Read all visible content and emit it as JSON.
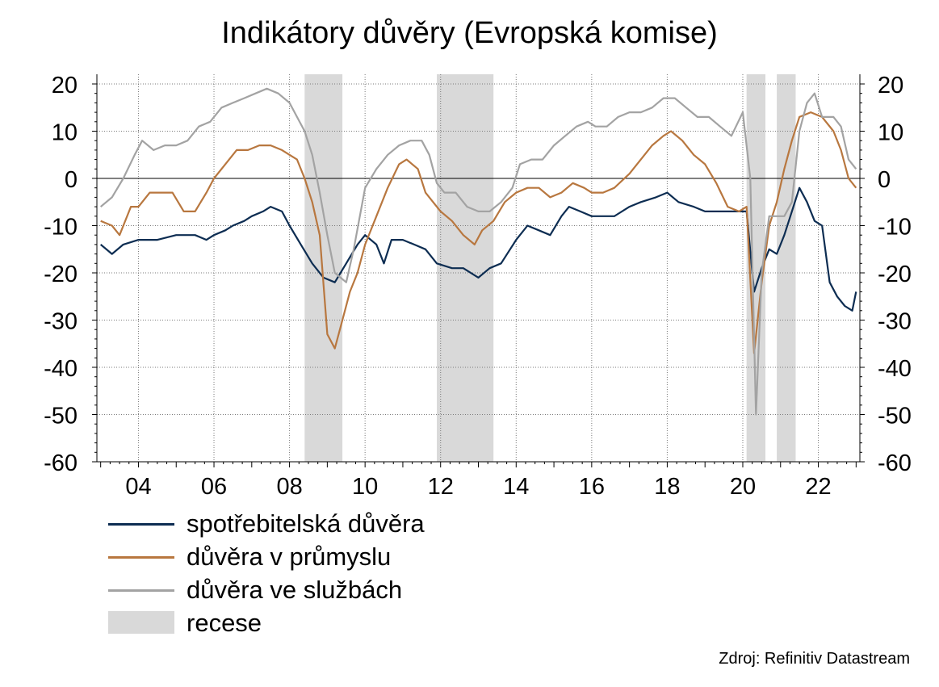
{
  "chart_data": {
    "type": "line",
    "title": "Indikátory důvěry (Evropská komise)",
    "source": "Zdroj: Refinitiv Datastream",
    "x_range": [
      2002.9,
      2023.1
    ],
    "ylim": [
      -60,
      20
    ],
    "y_ticks": [
      20,
      10,
      0,
      -10,
      -20,
      -30,
      -40,
      -50,
      -60
    ],
    "y_tick_labels": [
      "20",
      "10",
      "0",
      "-10",
      "-20",
      "-30",
      "-40",
      "-50",
      "-60"
    ],
    "x_ticks": [
      2004,
      2006,
      2008,
      2010,
      2012,
      2014,
      2016,
      2018,
      2020,
      2022
    ],
    "x_tick_labels": [
      "04",
      "06",
      "08",
      "10",
      "12",
      "14",
      "16",
      "18",
      "20",
      "22"
    ],
    "grid": true,
    "dual_y_axis": true,
    "legend_position": "bottom-left",
    "recessions": [
      [
        2008.4,
        2009.4
      ],
      [
        2011.9,
        2013.4
      ],
      [
        2020.1,
        2020.6
      ],
      [
        2020.9,
        2021.4
      ]
    ],
    "series": [
      {
        "name": "spotřebitelská důvěra",
        "color": "#0d2d52",
        "points": [
          [
            2003.0,
            -14
          ],
          [
            2003.3,
            -16
          ],
          [
            2003.6,
            -14
          ],
          [
            2004.0,
            -13
          ],
          [
            2004.5,
            -13
          ],
          [
            2005.0,
            -12
          ],
          [
            2005.5,
            -12
          ],
          [
            2005.8,
            -13
          ],
          [
            2006.0,
            -12
          ],
          [
            2006.3,
            -11
          ],
          [
            2006.5,
            -10
          ],
          [
            2006.8,
            -9
          ],
          [
            2007.0,
            -8
          ],
          [
            2007.3,
            -7
          ],
          [
            2007.5,
            -6
          ],
          [
            2007.8,
            -7
          ],
          [
            2008.0,
            -10
          ],
          [
            2008.3,
            -14
          ],
          [
            2008.6,
            -18
          ],
          [
            2008.9,
            -21
          ],
          [
            2009.2,
            -22
          ],
          [
            2009.5,
            -18
          ],
          [
            2009.8,
            -14
          ],
          [
            2010.0,
            -12
          ],
          [
            2010.3,
            -14
          ],
          [
            2010.5,
            -18
          ],
          [
            2010.7,
            -13
          ],
          [
            2011.0,
            -13
          ],
          [
            2011.3,
            -14
          ],
          [
            2011.6,
            -15
          ],
          [
            2011.9,
            -18
          ],
          [
            2012.3,
            -19
          ],
          [
            2012.6,
            -19
          ],
          [
            2013.0,
            -21
          ],
          [
            2013.3,
            -19
          ],
          [
            2013.6,
            -18
          ],
          [
            2014.0,
            -13
          ],
          [
            2014.3,
            -10
          ],
          [
            2014.6,
            -11
          ],
          [
            2014.9,
            -12
          ],
          [
            2015.2,
            -8
          ],
          [
            2015.4,
            -6
          ],
          [
            2015.7,
            -7
          ],
          [
            2016.0,
            -8
          ],
          [
            2016.3,
            -8
          ],
          [
            2016.6,
            -8
          ],
          [
            2017.0,
            -6
          ],
          [
            2017.3,
            -5
          ],
          [
            2017.7,
            -4
          ],
          [
            2018.0,
            -3
          ],
          [
            2018.3,
            -5
          ],
          [
            2018.7,
            -6
          ],
          [
            2019.0,
            -7
          ],
          [
            2019.3,
            -7
          ],
          [
            2019.6,
            -7
          ],
          [
            2019.9,
            -7
          ],
          [
            2020.1,
            -7
          ],
          [
            2020.3,
            -24
          ],
          [
            2020.5,
            -19
          ],
          [
            2020.7,
            -15
          ],
          [
            2020.9,
            -16
          ],
          [
            2021.1,
            -12
          ],
          [
            2021.3,
            -7
          ],
          [
            2021.5,
            -2
          ],
          [
            2021.7,
            -5
          ],
          [
            2021.9,
            -9
          ],
          [
            2022.1,
            -10
          ],
          [
            2022.3,
            -22
          ],
          [
            2022.5,
            -25
          ],
          [
            2022.7,
            -27
          ],
          [
            2022.9,
            -28
          ],
          [
            2023.0,
            -24
          ]
        ]
      },
      {
        "name": "důvěra v průmyslu",
        "color": "#b8773f",
        "points": [
          [
            2003.0,
            -9
          ],
          [
            2003.3,
            -10
          ],
          [
            2003.5,
            -12
          ],
          [
            2003.8,
            -6
          ],
          [
            2004.0,
            -6
          ],
          [
            2004.3,
            -3
          ],
          [
            2004.6,
            -3
          ],
          [
            2004.9,
            -3
          ],
          [
            2005.2,
            -7
          ],
          [
            2005.5,
            -7
          ],
          [
            2005.8,
            -3
          ],
          [
            2006.0,
            0
          ],
          [
            2006.3,
            3
          ],
          [
            2006.6,
            6
          ],
          [
            2006.9,
            6
          ],
          [
            2007.2,
            7
          ],
          [
            2007.5,
            7
          ],
          [
            2007.8,
            6
          ],
          [
            2008.0,
            5
          ],
          [
            2008.2,
            4
          ],
          [
            2008.4,
            0
          ],
          [
            2008.6,
            -5
          ],
          [
            2008.8,
            -12
          ],
          [
            2009.0,
            -33
          ],
          [
            2009.2,
            -36
          ],
          [
            2009.4,
            -30
          ],
          [
            2009.6,
            -24
          ],
          [
            2009.8,
            -20
          ],
          [
            2010.0,
            -14
          ],
          [
            2010.3,
            -8
          ],
          [
            2010.6,
            -2
          ],
          [
            2010.9,
            3
          ],
          [
            2011.1,
            4
          ],
          [
            2011.4,
            2
          ],
          [
            2011.6,
            -3
          ],
          [
            2011.8,
            -5
          ],
          [
            2012.0,
            -7
          ],
          [
            2012.3,
            -9
          ],
          [
            2012.6,
            -12
          ],
          [
            2012.9,
            -14
          ],
          [
            2013.1,
            -11
          ],
          [
            2013.4,
            -9
          ],
          [
            2013.7,
            -5
          ],
          [
            2014.0,
            -3
          ],
          [
            2014.3,
            -2
          ],
          [
            2014.6,
            -2
          ],
          [
            2014.9,
            -4
          ],
          [
            2015.2,
            -3
          ],
          [
            2015.5,
            -1
          ],
          [
            2015.8,
            -2
          ],
          [
            2016.0,
            -3
          ],
          [
            2016.3,
            -3
          ],
          [
            2016.6,
            -2
          ],
          [
            2017.0,
            1
          ],
          [
            2017.3,
            4
          ],
          [
            2017.6,
            7
          ],
          [
            2017.9,
            9
          ],
          [
            2018.1,
            10
          ],
          [
            2018.4,
            8
          ],
          [
            2018.7,
            5
          ],
          [
            2019.0,
            3
          ],
          [
            2019.3,
            -1
          ],
          [
            2019.6,
            -6
          ],
          [
            2019.9,
            -7
          ],
          [
            2020.1,
            -6
          ],
          [
            2020.3,
            -37
          ],
          [
            2020.5,
            -22
          ],
          [
            2020.7,
            -10
          ],
          [
            2020.9,
            -5
          ],
          [
            2021.1,
            2
          ],
          [
            2021.3,
            8
          ],
          [
            2021.5,
            13
          ],
          [
            2021.8,
            14
          ],
          [
            2022.1,
            13
          ],
          [
            2022.4,
            10
          ],
          [
            2022.6,
            6
          ],
          [
            2022.8,
            0
          ],
          [
            2023.0,
            -2
          ]
        ]
      },
      {
        "name": "důvěra ve službách",
        "color": "#a3a3a3",
        "points": [
          [
            2003.0,
            -6
          ],
          [
            2003.3,
            -4
          ],
          [
            2003.6,
            0
          ],
          [
            2003.9,
            5
          ],
          [
            2004.1,
            8
          ],
          [
            2004.4,
            6
          ],
          [
            2004.7,
            7
          ],
          [
            2005.0,
            7
          ],
          [
            2005.3,
            8
          ],
          [
            2005.6,
            11
          ],
          [
            2005.9,
            12
          ],
          [
            2006.2,
            15
          ],
          [
            2006.5,
            16
          ],
          [
            2006.8,
            17
          ],
          [
            2007.1,
            18
          ],
          [
            2007.4,
            19
          ],
          [
            2007.7,
            18
          ],
          [
            2008.0,
            16
          ],
          [
            2008.2,
            13
          ],
          [
            2008.4,
            10
          ],
          [
            2008.6,
            5
          ],
          [
            2008.8,
            -3
          ],
          [
            2009.0,
            -12
          ],
          [
            2009.2,
            -20
          ],
          [
            2009.5,
            -22
          ],
          [
            2009.7,
            -15
          ],
          [
            2010.0,
            -2
          ],
          [
            2010.3,
            2
          ],
          [
            2010.6,
            5
          ],
          [
            2010.9,
            7
          ],
          [
            2011.2,
            8
          ],
          [
            2011.5,
            8
          ],
          [
            2011.7,
            5
          ],
          [
            2011.9,
            -1
          ],
          [
            2012.1,
            -3
          ],
          [
            2012.4,
            -3
          ],
          [
            2012.7,
            -6
          ],
          [
            2013.0,
            -7
          ],
          [
            2013.3,
            -7
          ],
          [
            2013.6,
            -5
          ],
          [
            2013.9,
            -2
          ],
          [
            2014.1,
            3
          ],
          [
            2014.4,
            4
          ],
          [
            2014.7,
            4
          ],
          [
            2015.0,
            7
          ],
          [
            2015.3,
            9
          ],
          [
            2015.6,
            11
          ],
          [
            2015.9,
            12
          ],
          [
            2016.1,
            11
          ],
          [
            2016.4,
            11
          ],
          [
            2016.7,
            13
          ],
          [
            2017.0,
            14
          ],
          [
            2017.3,
            14
          ],
          [
            2017.6,
            15
          ],
          [
            2017.9,
            17
          ],
          [
            2018.2,
            17
          ],
          [
            2018.5,
            15
          ],
          [
            2018.8,
            13
          ],
          [
            2019.1,
            13
          ],
          [
            2019.4,
            11
          ],
          [
            2019.7,
            9
          ],
          [
            2020.0,
            14
          ],
          [
            2020.2,
            0
          ],
          [
            2020.35,
            -50
          ],
          [
            2020.5,
            -20
          ],
          [
            2020.7,
            -8
          ],
          [
            2020.9,
            -8
          ],
          [
            2021.1,
            -8
          ],
          [
            2021.3,
            -5
          ],
          [
            2021.5,
            10
          ],
          [
            2021.7,
            16
          ],
          [
            2021.9,
            18
          ],
          [
            2022.1,
            13
          ],
          [
            2022.4,
            13
          ],
          [
            2022.6,
            11
          ],
          [
            2022.8,
            4
          ],
          [
            2023.0,
            2
          ]
        ]
      },
      {
        "name": "recese",
        "color": "#d9d9d9"
      }
    ]
  }
}
